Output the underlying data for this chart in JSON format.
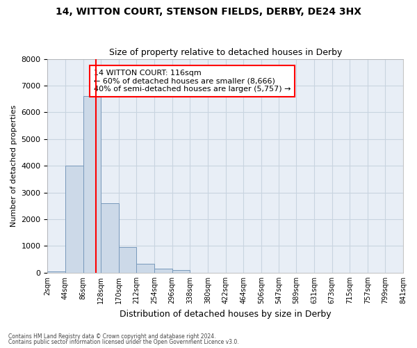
{
  "title1": "14, WITTON COURT, STENSON FIELDS, DERBY, DE24 3HX",
  "title2": "Size of property relative to detached houses in Derby",
  "xlabel": "Distribution of detached houses by size in Derby",
  "ylabel": "Number of detached properties",
  "bin_edges": [
    2,
    44,
    86,
    128,
    170,
    212,
    254,
    296,
    338,
    380,
    422,
    464,
    506,
    547,
    589,
    631,
    673,
    715,
    757,
    799,
    841
  ],
  "bin_labels": [
    "2sqm",
    "44sqm",
    "86sqm",
    "128sqm",
    "170sqm",
    "212sqm",
    "254sqm",
    "296sqm",
    "338sqm",
    "380sqm",
    "422sqm",
    "464sqm",
    "506sqm",
    "547sqm",
    "589sqm",
    "631sqm",
    "673sqm",
    "715sqm",
    "757sqm",
    "799sqm",
    "841sqm"
  ],
  "counts": [
    50,
    4000,
    6600,
    2600,
    960,
    330,
    150,
    90,
    0,
    0,
    0,
    0,
    0,
    0,
    0,
    0,
    0,
    0,
    0,
    0
  ],
  "bar_color": "#ccd9e8",
  "bar_edge_color": "#7799bb",
  "property_line_x": 116,
  "property_line_color": "red",
  "annotation_text": "14 WITTON COURT: 116sqm\n← 60% of detached houses are smaller (8,666)\n40% of semi-detached houses are larger (5,757) →",
  "annotation_box_color": "white",
  "annotation_box_edge_color": "red",
  "ylim": [
    0,
    8000
  ],
  "yticks": [
    0,
    1000,
    2000,
    3000,
    4000,
    5000,
    6000,
    7000,
    8000
  ],
  "grid_color": "#c8d4e0",
  "bg_color": "#e8eef6",
  "footer1": "Contains HM Land Registry data © Crown copyright and database right 2024.",
  "footer2": "Contains public sector information licensed under the Open Government Licence v3.0."
}
